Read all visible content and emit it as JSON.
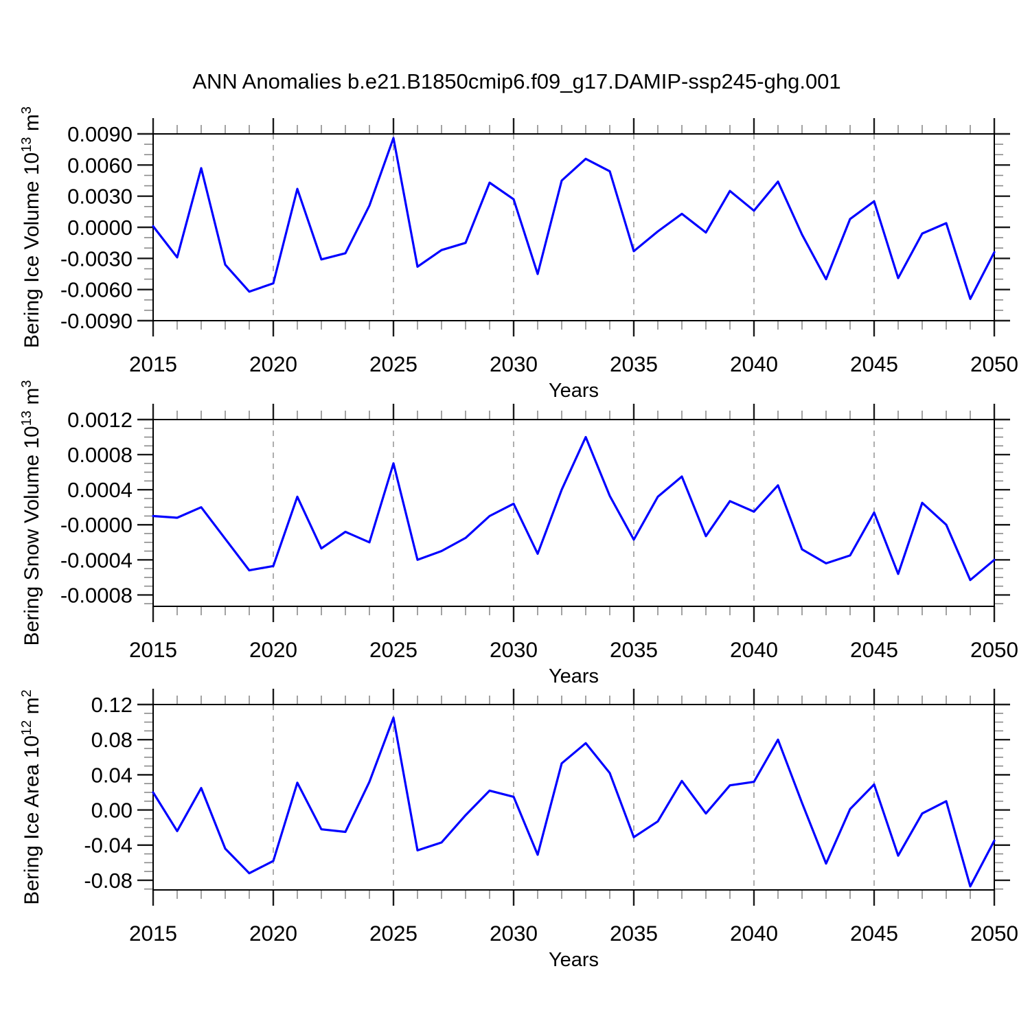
{
  "title": "ANN Anomalies b.e21.B1850cmip6.f09_g17.DAMIP-ssp245-ghg.001",
  "line_color": "#0000ff",
  "grid_color": "#999999",
  "chart_data": [
    {
      "type": "line",
      "ylabel": "Bering Ice Volume 10^13 m^3",
      "ylabel_parts": [
        {
          "t": "Bering Ice Volume 10"
        },
        {
          "t": "13",
          "sup": true
        },
        {
          "t": " m"
        },
        {
          "t": "3",
          "sup": true
        }
      ],
      "xlabel": "Years",
      "legend": "none",
      "grid": "dashed-vertical",
      "x": [
        2015,
        2016,
        2017,
        2018,
        2019,
        2020,
        2021,
        2022,
        2023,
        2024,
        2025,
        2026,
        2027,
        2028,
        2029,
        2030,
        2031,
        2032,
        2033,
        2034,
        2035,
        2036,
        2037,
        2038,
        2039,
        2040,
        2041,
        2042,
        2043,
        2044,
        2045,
        2046,
        2047,
        2048,
        2049,
        2050
      ],
      "values": [
        0.0001,
        -0.0029,
        0.0057,
        -0.0036,
        -0.0062,
        -0.0054,
        0.0037,
        -0.0031,
        -0.0025,
        0.0021,
        0.0086,
        -0.0038,
        -0.0022,
        -0.0015,
        0.0043,
        0.0027,
        -0.0045,
        0.0045,
        0.0066,
        0.0054,
        -0.0023,
        -0.0004,
        0.0013,
        -0.0005,
        0.0035,
        0.0016,
        0.0044,
        -0.0007,
        -0.005,
        0.0008,
        0.0025,
        -0.0049,
        -0.0006,
        0.0004,
        -0.0069,
        -0.0024
      ],
      "xlim": [
        2015,
        2050
      ],
      "ylim": [
        -0.009,
        0.009
      ],
      "xticks": [
        2015,
        2020,
        2025,
        2030,
        2035,
        2040,
        2045,
        2050
      ],
      "xtick_labels": [
        "2015",
        "2020",
        "2025",
        "2030",
        "2035",
        "2040",
        "2045",
        "2050"
      ],
      "xminor_step": 1,
      "ytick_values": [
        0.009,
        0.006,
        0.003,
        0,
        -0.003,
        -0.006,
        -0.009
      ],
      "ytick_labels": [
        "0.0090",
        "0.0060",
        "0.0030",
        "0.0000",
        "-0.0030",
        "-0.0060",
        "-0.0090"
      ],
      "yminor_step": 0.001,
      "gridlines_x": [
        2020,
        2025,
        2030,
        2035,
        2040,
        2045
      ]
    },
    {
      "type": "line",
      "ylabel": "Bering Snow Volume 10^13 m^3",
      "ylabel_parts": [
        {
          "t": "Bering Snow Volume 10"
        },
        {
          "t": "13",
          "sup": true
        },
        {
          "t": " m"
        },
        {
          "t": "3",
          "sup": true
        }
      ],
      "xlabel": "Years",
      "legend": "none",
      "grid": "dashed-vertical",
      "x": [
        2015,
        2016,
        2017,
        2018,
        2019,
        2020,
        2021,
        2022,
        2023,
        2024,
        2025,
        2026,
        2027,
        2028,
        2029,
        2030,
        2031,
        2032,
        2033,
        2034,
        2035,
        2036,
        2037,
        2038,
        2039,
        2040,
        2041,
        2042,
        2043,
        2044,
        2045,
        2046,
        2047,
        2048,
        2049,
        2050
      ],
      "values": [
        0.0001,
        8e-05,
        0.0002,
        -0.00016,
        -0.00052,
        -0.00047,
        0.00032,
        -0.00027,
        -8e-05,
        -0.0002,
        0.0007,
        -0.0004,
        -0.0003,
        -0.00015,
        0.0001,
        0.00024,
        -0.00033,
        0.0004,
        0.001,
        0.00033,
        -0.00017,
        0.00032,
        0.00055,
        -0.00013,
        0.00027,
        0.00015,
        0.00045,
        -0.00028,
        -0.00044,
        -0.00035,
        0.00014,
        -0.00056,
        0.00025,
        0.0,
        -0.00063,
        -0.0004
      ],
      "xlim": [
        2015,
        2050
      ],
      "ylim": [
        -0.00093,
        0.0012
      ],
      "xticks": [
        2015,
        2020,
        2025,
        2030,
        2035,
        2040,
        2045,
        2050
      ],
      "xtick_labels": [
        "2015",
        "2020",
        "2025",
        "2030",
        "2035",
        "2040",
        "2045",
        "2050"
      ],
      "xminor_step": 1,
      "ytick_values": [
        0.0012,
        0.0008,
        0.0004,
        0,
        -0.0004,
        -0.0008
      ],
      "ytick_labels": [
        "0.0012",
        "0.0008",
        "0.0004",
        "-0.0000",
        "-0.0004",
        "-0.0008"
      ],
      "yminor_step": 0.0001,
      "gridlines_x": [
        2020,
        2025,
        2030,
        2035,
        2040,
        2045
      ]
    },
    {
      "type": "line",
      "ylabel": "Bering Ice Area 10^12 m^2",
      "ylabel_parts": [
        {
          "t": "Bering Ice Area 10"
        },
        {
          "t": "12",
          "sup": true
        },
        {
          "t": " m"
        },
        {
          "t": "2",
          "sup": true
        }
      ],
      "xlabel": "Years",
      "legend": "none",
      "grid": "dashed-vertical",
      "x": [
        2015,
        2016,
        2017,
        2018,
        2019,
        2020,
        2021,
        2022,
        2023,
        2024,
        2025,
        2026,
        2027,
        2028,
        2029,
        2030,
        2031,
        2032,
        2033,
        2034,
        2035,
        2036,
        2037,
        2038,
        2039,
        2040,
        2041,
        2042,
        2043,
        2044,
        2045,
        2046,
        2047,
        2048,
        2049,
        2050
      ],
      "values": [
        0.02,
        -0.024,
        0.025,
        -0.044,
        -0.072,
        -0.058,
        0.031,
        -0.022,
        -0.025,
        0.032,
        0.105,
        -0.046,
        -0.037,
        -0.006,
        0.022,
        0.015,
        -0.051,
        0.053,
        0.076,
        0.042,
        -0.031,
        -0.013,
        0.033,
        -0.004,
        0.028,
        0.032,
        0.08,
        0.008,
        -0.061,
        0.001,
        0.029,
        -0.052,
        -0.004,
        0.01,
        -0.087,
        -0.035
      ],
      "xlim": [
        2015,
        2050
      ],
      "ylim": [
        -0.091,
        0.12
      ],
      "xticks": [
        2015,
        2020,
        2025,
        2030,
        2035,
        2040,
        2045,
        2050
      ],
      "xtick_labels": [
        "2015",
        "2020",
        "2025",
        "2030",
        "2035",
        "2040",
        "2045",
        "2050"
      ],
      "xminor_step": 1,
      "ytick_values": [
        0.12,
        0.08,
        0.04,
        0,
        -0.04,
        -0.08
      ],
      "ytick_labels": [
        "0.12",
        "0.08",
        "0.04",
        "0.00",
        "-0.04",
        "-0.08"
      ],
      "yminor_step": 0.01,
      "gridlines_x": [
        2020,
        2025,
        2030,
        2035,
        2040,
        2045
      ]
    }
  ]
}
